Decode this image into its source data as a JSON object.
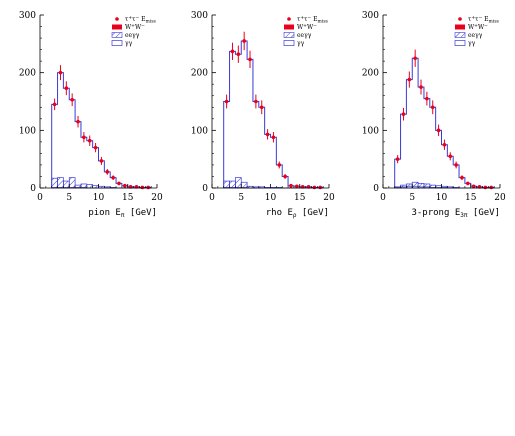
{
  "chart_data": [
    {
      "type": "bar",
      "panel": "pion",
      "xlabel_main": "pion E",
      "xlabel_sub": "π",
      "xlabel_unit": "[GeV]",
      "xlim": [
        0,
        20
      ],
      "ylim": [
        0,
        300
      ],
      "xticks": [
        "0",
        "5",
        "10",
        "15",
        "20"
      ],
      "yticks": [
        "0",
        "100",
        "200",
        "300"
      ],
      "bin_edges": [
        2,
        3,
        4,
        5,
        6,
        7,
        8,
        9,
        10,
        11,
        12,
        13,
        14,
        15,
        16,
        17,
        18,
        19
      ],
      "series": [
        {
          "name": "τ⁺τ⁻ E_miss",
          "kind": "data-points",
          "values": [
            145,
            200,
            173,
            153,
            115,
            88,
            82,
            70,
            47,
            28,
            18,
            8,
            4,
            2,
            2,
            1,
            1
          ],
          "errors": [
            10,
            13,
            12,
            11,
            10,
            9,
            9,
            8,
            7,
            5,
            4,
            3,
            2,
            1,
            1,
            1,
            1
          ]
        },
        {
          "name": "W⁺W⁻",
          "kind": "histogram",
          "values": [
            145,
            200,
            173,
            153,
            115,
            88,
            82,
            70,
            47,
            28,
            18,
            8,
            4,
            2,
            2,
            1,
            1
          ]
        },
        {
          "name": "eeγγ",
          "kind": "hatched",
          "values": [
            17,
            18,
            12,
            18,
            5,
            7,
            6,
            4,
            3,
            2,
            1,
            0,
            0,
            0,
            0,
            0,
            0
          ]
        },
        {
          "name": "γγ",
          "kind": "outline",
          "values": [
            1,
            1,
            1,
            1,
            1,
            1,
            0,
            0,
            0,
            0,
            0,
            0,
            0,
            0,
            0,
            0,
            0
          ]
        }
      ]
    },
    {
      "type": "bar",
      "panel": "rho",
      "xlabel_main": "rho E",
      "xlabel_sub": "ρ",
      "xlabel_unit": "[GeV]",
      "xlim": [
        0,
        20
      ],
      "ylim": [
        0,
        300
      ],
      "xticks": [
        "0",
        "5",
        "10",
        "15",
        "20"
      ],
      "yticks": [
        "0",
        "100",
        "200",
        "300"
      ],
      "bin_edges": [
        2,
        3,
        4,
        5,
        6,
        7,
        8,
        9,
        10,
        11,
        12,
        13,
        14,
        15,
        16,
        17,
        18,
        19
      ],
      "series": [
        {
          "name": "τ⁺τ⁻ E_miss",
          "kind": "data-points",
          "values": [
            150,
            237,
            232,
            255,
            223,
            150,
            140,
            93,
            88,
            40,
            20,
            4,
            3,
            2,
            2,
            1,
            1
          ],
          "errors": [
            12,
            15,
            15,
            16,
            15,
            12,
            12,
            9,
            9,
            6,
            4,
            2,
            2,
            1,
            1,
            1,
            1
          ]
        },
        {
          "name": "W⁺W⁻",
          "kind": "histogram",
          "values": [
            150,
            237,
            232,
            255,
            223,
            150,
            140,
            93,
            88,
            40,
            20,
            4,
            3,
            2,
            2,
            1,
            1
          ]
        },
        {
          "name": "eeγγ",
          "kind": "hatched",
          "values": [
            12,
            12,
            18,
            10,
            3,
            2,
            2,
            1,
            1,
            1,
            0,
            0,
            0,
            0,
            0,
            0,
            0
          ]
        },
        {
          "name": "γγ",
          "kind": "outline",
          "values": [
            1,
            1,
            1,
            1,
            0,
            0,
            0,
            0,
            0,
            0,
            0,
            0,
            0,
            0,
            0,
            0,
            0
          ]
        }
      ]
    },
    {
      "type": "bar",
      "panel": "3-prong",
      "xlabel_main": "3-prong E",
      "xlabel_sub": "3π",
      "xlabel_unit": "[GeV]",
      "xlim": [
        0,
        20
      ],
      "ylim": [
        0,
        300
      ],
      "xticks": [
        "0",
        "5",
        "10",
        "15",
        "20"
      ],
      "yticks": [
        "0",
        "100",
        "200",
        "300"
      ],
      "bin_edges": [
        2,
        3,
        4,
        5,
        6,
        7,
        8,
        9,
        10,
        11,
        12,
        13,
        14,
        15,
        16,
        17,
        18,
        19
      ],
      "series": [
        {
          "name": "τ⁺τ⁻ E_miss",
          "kind": "data-points",
          "values": [
            50,
            128,
            188,
            225,
            175,
            155,
            140,
            100,
            75,
            55,
            40,
            18,
            8,
            3,
            2,
            1,
            1
          ],
          "errors": [
            7,
            11,
            14,
            15,
            13,
            12,
            12,
            10,
            9,
            7,
            6,
            4,
            3,
            2,
            1,
            1,
            1
          ]
        },
        {
          "name": "W⁺W⁻",
          "kind": "histogram",
          "values": [
            50,
            128,
            188,
            225,
            175,
            155,
            140,
            100,
            75,
            55,
            40,
            18,
            8,
            3,
            2,
            1,
            1
          ]
        },
        {
          "name": "eeγγ",
          "kind": "hatched",
          "values": [
            2,
            5,
            7,
            10,
            8,
            7,
            5,
            4,
            3,
            2,
            1,
            0,
            0,
            0,
            0,
            0,
            0
          ]
        },
        {
          "name": "γγ",
          "kind": "outline",
          "values": [
            1,
            2,
            3,
            3,
            2,
            2,
            1,
            1,
            1,
            0,
            0,
            0,
            0,
            0,
            0,
            0,
            0
          ]
        }
      ]
    }
  ],
  "legend": [
    {
      "main": "τ",
      "sup1": "+",
      "mid": "τ",
      "sup2": "−",
      "tail": "E",
      "sub": "miss"
    },
    {
      "main": "W",
      "sup1": "+",
      "mid": "W",
      "sup2": "−",
      "tail": "",
      "sub": ""
    },
    {
      "main": "eeγγ",
      "sup1": "",
      "mid": "",
      "sup2": "",
      "tail": "",
      "sub": ""
    },
    {
      "main": "γγ",
      "sup1": "",
      "mid": "",
      "sup2": "",
      "tail": "",
      "sub": ""
    }
  ],
  "colors": {
    "data_points": "#e8001c",
    "histogram": "#3a3ad6",
    "hatch": "#3a3ad6",
    "axis": "#000000"
  }
}
